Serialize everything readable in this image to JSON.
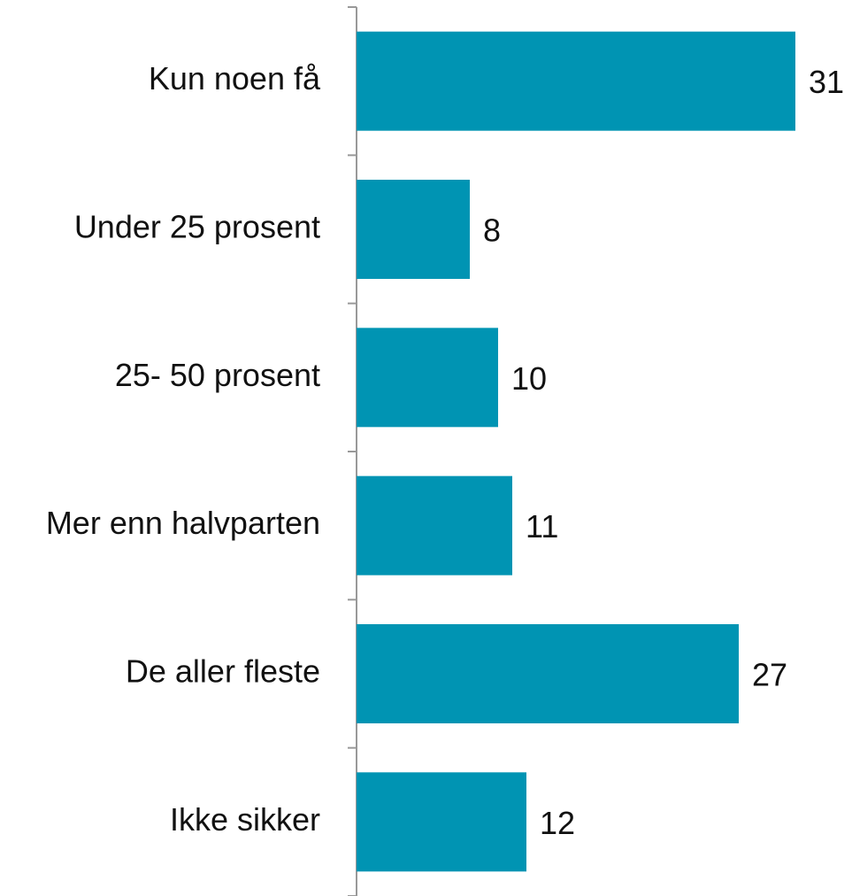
{
  "chart_data": {
    "type": "barh",
    "categories": [
      "Kun noen få",
      "Under 25 prosent",
      "25- 50 prosent",
      "Mer enn halvparten",
      "De aller fleste",
      "Ikke sikker"
    ],
    "values": [
      31,
      8,
      10,
      11,
      27,
      12
    ],
    "color": "#0094b3"
  }
}
